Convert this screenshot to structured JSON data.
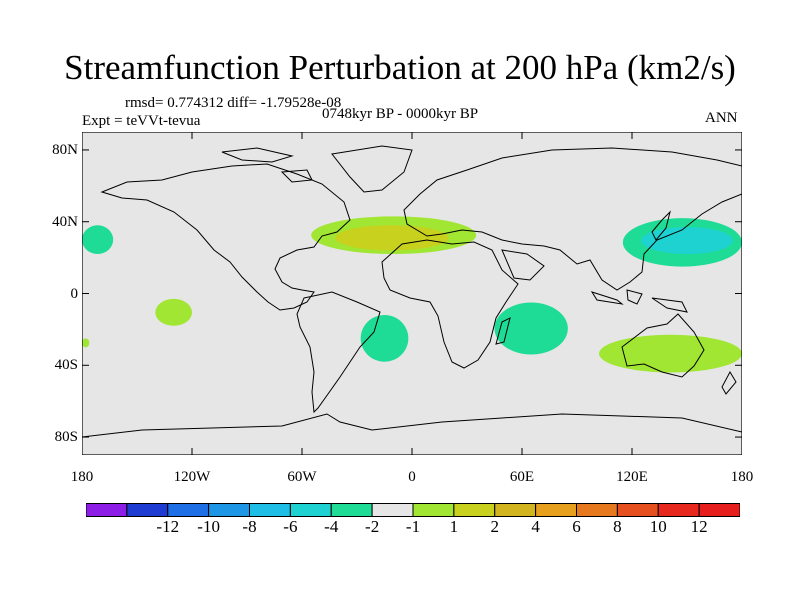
{
  "title": "Streamfunction Perturbation at 200 hPa (km2/s)",
  "stats": "rmsd= 0.774312 diff= -1.79528e-08",
  "experiment": "Expt = teVVt-tevua",
  "period": "0748kyr BP - 0000kyr BP",
  "season": "ANN",
  "map": {
    "background_color": "#e6e6e6",
    "lat_range": [
      -90,
      90
    ],
    "lon_range": [
      -180,
      180
    ],
    "lat_ticks": [
      {
        "value": 80,
        "label": "80N"
      },
      {
        "value": 40,
        "label": "40N"
      },
      {
        "value": 0,
        "label": "0"
      },
      {
        "value": -40,
        "label": "40S"
      },
      {
        "value": -80,
        "label": "80S"
      }
    ],
    "lon_ticks": [
      {
        "value": -180,
        "label": "180"
      },
      {
        "value": -120,
        "label": "120W"
      },
      {
        "value": -60,
        "label": "60W"
      },
      {
        "value": 0,
        "label": "0"
      },
      {
        "value": 60,
        "label": "60E"
      },
      {
        "value": 120,
        "label": "120E"
      },
      {
        "value": 180,
        "label": "180"
      }
    ]
  },
  "contour_regions": [
    {
      "name": "n-africa-atlantic-outer",
      "level": "1 to 2",
      "color": "#a0e632",
      "lon": [
        -55,
        35
      ],
      "lat": [
        22,
        43
      ]
    },
    {
      "name": "n-africa-atlantic-inner",
      "level": "2 to 4",
      "color": "#c8d21e",
      "lon": [
        -42,
        20
      ],
      "lat": [
        24,
        38
      ]
    },
    {
      "name": "w-pacific-outer",
      "level": "-2 to -1",
      "color": "#1edc96",
      "lon": [
        115,
        180
      ],
      "lat": [
        15,
        42
      ]
    },
    {
      "name": "w-pacific-inner",
      "level": "-4 to -2",
      "color": "#1ed2d2",
      "lon": [
        125,
        175
      ],
      "lat": [
        22,
        37
      ]
    },
    {
      "name": "dateline-west-edge",
      "level": "-2 to -1",
      "color": "#1edc96",
      "lon": [
        -180,
        -163
      ],
      "lat": [
        22,
        38
      ]
    },
    {
      "name": "e-pacific-tropics",
      "level": "1 to 2",
      "color": "#a0e632",
      "lon": [
        -140,
        -120
      ],
      "lat": [
        -18,
        -3
      ]
    },
    {
      "name": "s-atlantic",
      "level": "-2 to -1",
      "color": "#1edc96",
      "lon": [
        -28,
        -2
      ],
      "lat": [
        -38,
        -12
      ]
    },
    {
      "name": "s-indian",
      "level": "-2 to -1",
      "color": "#1edc96",
      "lon": [
        45,
        85
      ],
      "lat": [
        -34,
        -5
      ]
    },
    {
      "name": "australia-south",
      "level": "1 to 2",
      "color": "#a0e632",
      "lon": [
        102,
        180
      ],
      "lat": [
        -44,
        -23
      ]
    },
    {
      "name": "s-pacific-west-edge",
      "level": "1 to 2",
      "color": "#a0e632",
      "lon": [
        -180,
        -176
      ],
      "lat": [
        -30,
        -25
      ]
    }
  ],
  "colorbar": {
    "colors": [
      "#8c1ee6",
      "#1e3cd2",
      "#1e6ee6",
      "#1e96e6",
      "#1ebee6",
      "#1ed2d2",
      "#1edc96",
      "#e6e6e6",
      "#a0e632",
      "#c8d21e",
      "#d2b41e",
      "#e6a01e",
      "#e6781e",
      "#e6501e",
      "#e6281e",
      "#e61e1e"
    ],
    "labels": [
      "-12",
      "-10",
      "-8",
      "-6",
      "-4",
      "-2",
      "-1",
      "1",
      "2",
      "4",
      "6",
      "8",
      "10",
      "12"
    ]
  }
}
